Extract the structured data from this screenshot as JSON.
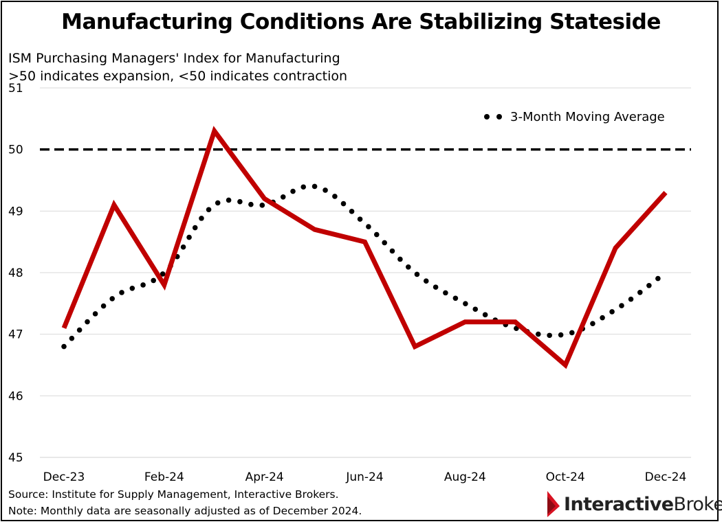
{
  "title": "Manufacturing Conditions Are Stabilizing Stateside",
  "subtitle_line1": "ISM Purchasing Managers' Index for Manufacturing",
  "subtitle_line2": ">50 indicates expansion, <50 indicates contraction",
  "footer_source": "Source: Institute for Supply Management, Interactive Brokers.",
  "footer_note": "Note: Monthly data are seasonally adjusted as of December 2024.",
  "logo": {
    "part1": "Interactive",
    "part2": "Brokers"
  },
  "colors": {
    "pmi": "#c00000",
    "moving_average": "#000000",
    "threshold": "#000000",
    "grid": "#d9d9d9"
  },
  "chart_data": {
    "type": "line",
    "title": "Manufacturing Conditions Are Stabilizing Stateside",
    "x": [
      "Dec-23",
      "Jan-24",
      "Feb-24",
      "Mar-24",
      "Apr-24",
      "May-24",
      "Jun-24",
      "Jul-24",
      "Aug-24",
      "Sep-24",
      "Oct-24",
      "Nov-24",
      "Dec-24"
    ],
    "x_tick_labels": [
      "Dec-23",
      "Feb-24",
      "Apr-24",
      "Jun-24",
      "Aug-24",
      "Oct-24",
      "Dec-24"
    ],
    "ylim": [
      45,
      51
    ],
    "y_ticks": [
      45,
      46,
      47,
      48,
      49,
      50,
      51
    ],
    "grid": true,
    "legend_position": "top-right",
    "series": [
      {
        "values": [
          47.1,
          49.1,
          47.8,
          50.3,
          49.2,
          48.7,
          48.5,
          46.8,
          47.2,
          47.2,
          46.5,
          48.4,
          49.3
        ]
      },
      {
        "name": "3-Month Moving Average",
        "values": [
          46.8,
          47.6,
          48.0,
          49.1,
          49.1,
          49.4,
          48.8,
          48.0,
          47.5,
          47.1,
          47.0,
          47.4,
          48.0
        ]
      }
    ],
    "reference_line": {
      "y": 50
    }
  }
}
